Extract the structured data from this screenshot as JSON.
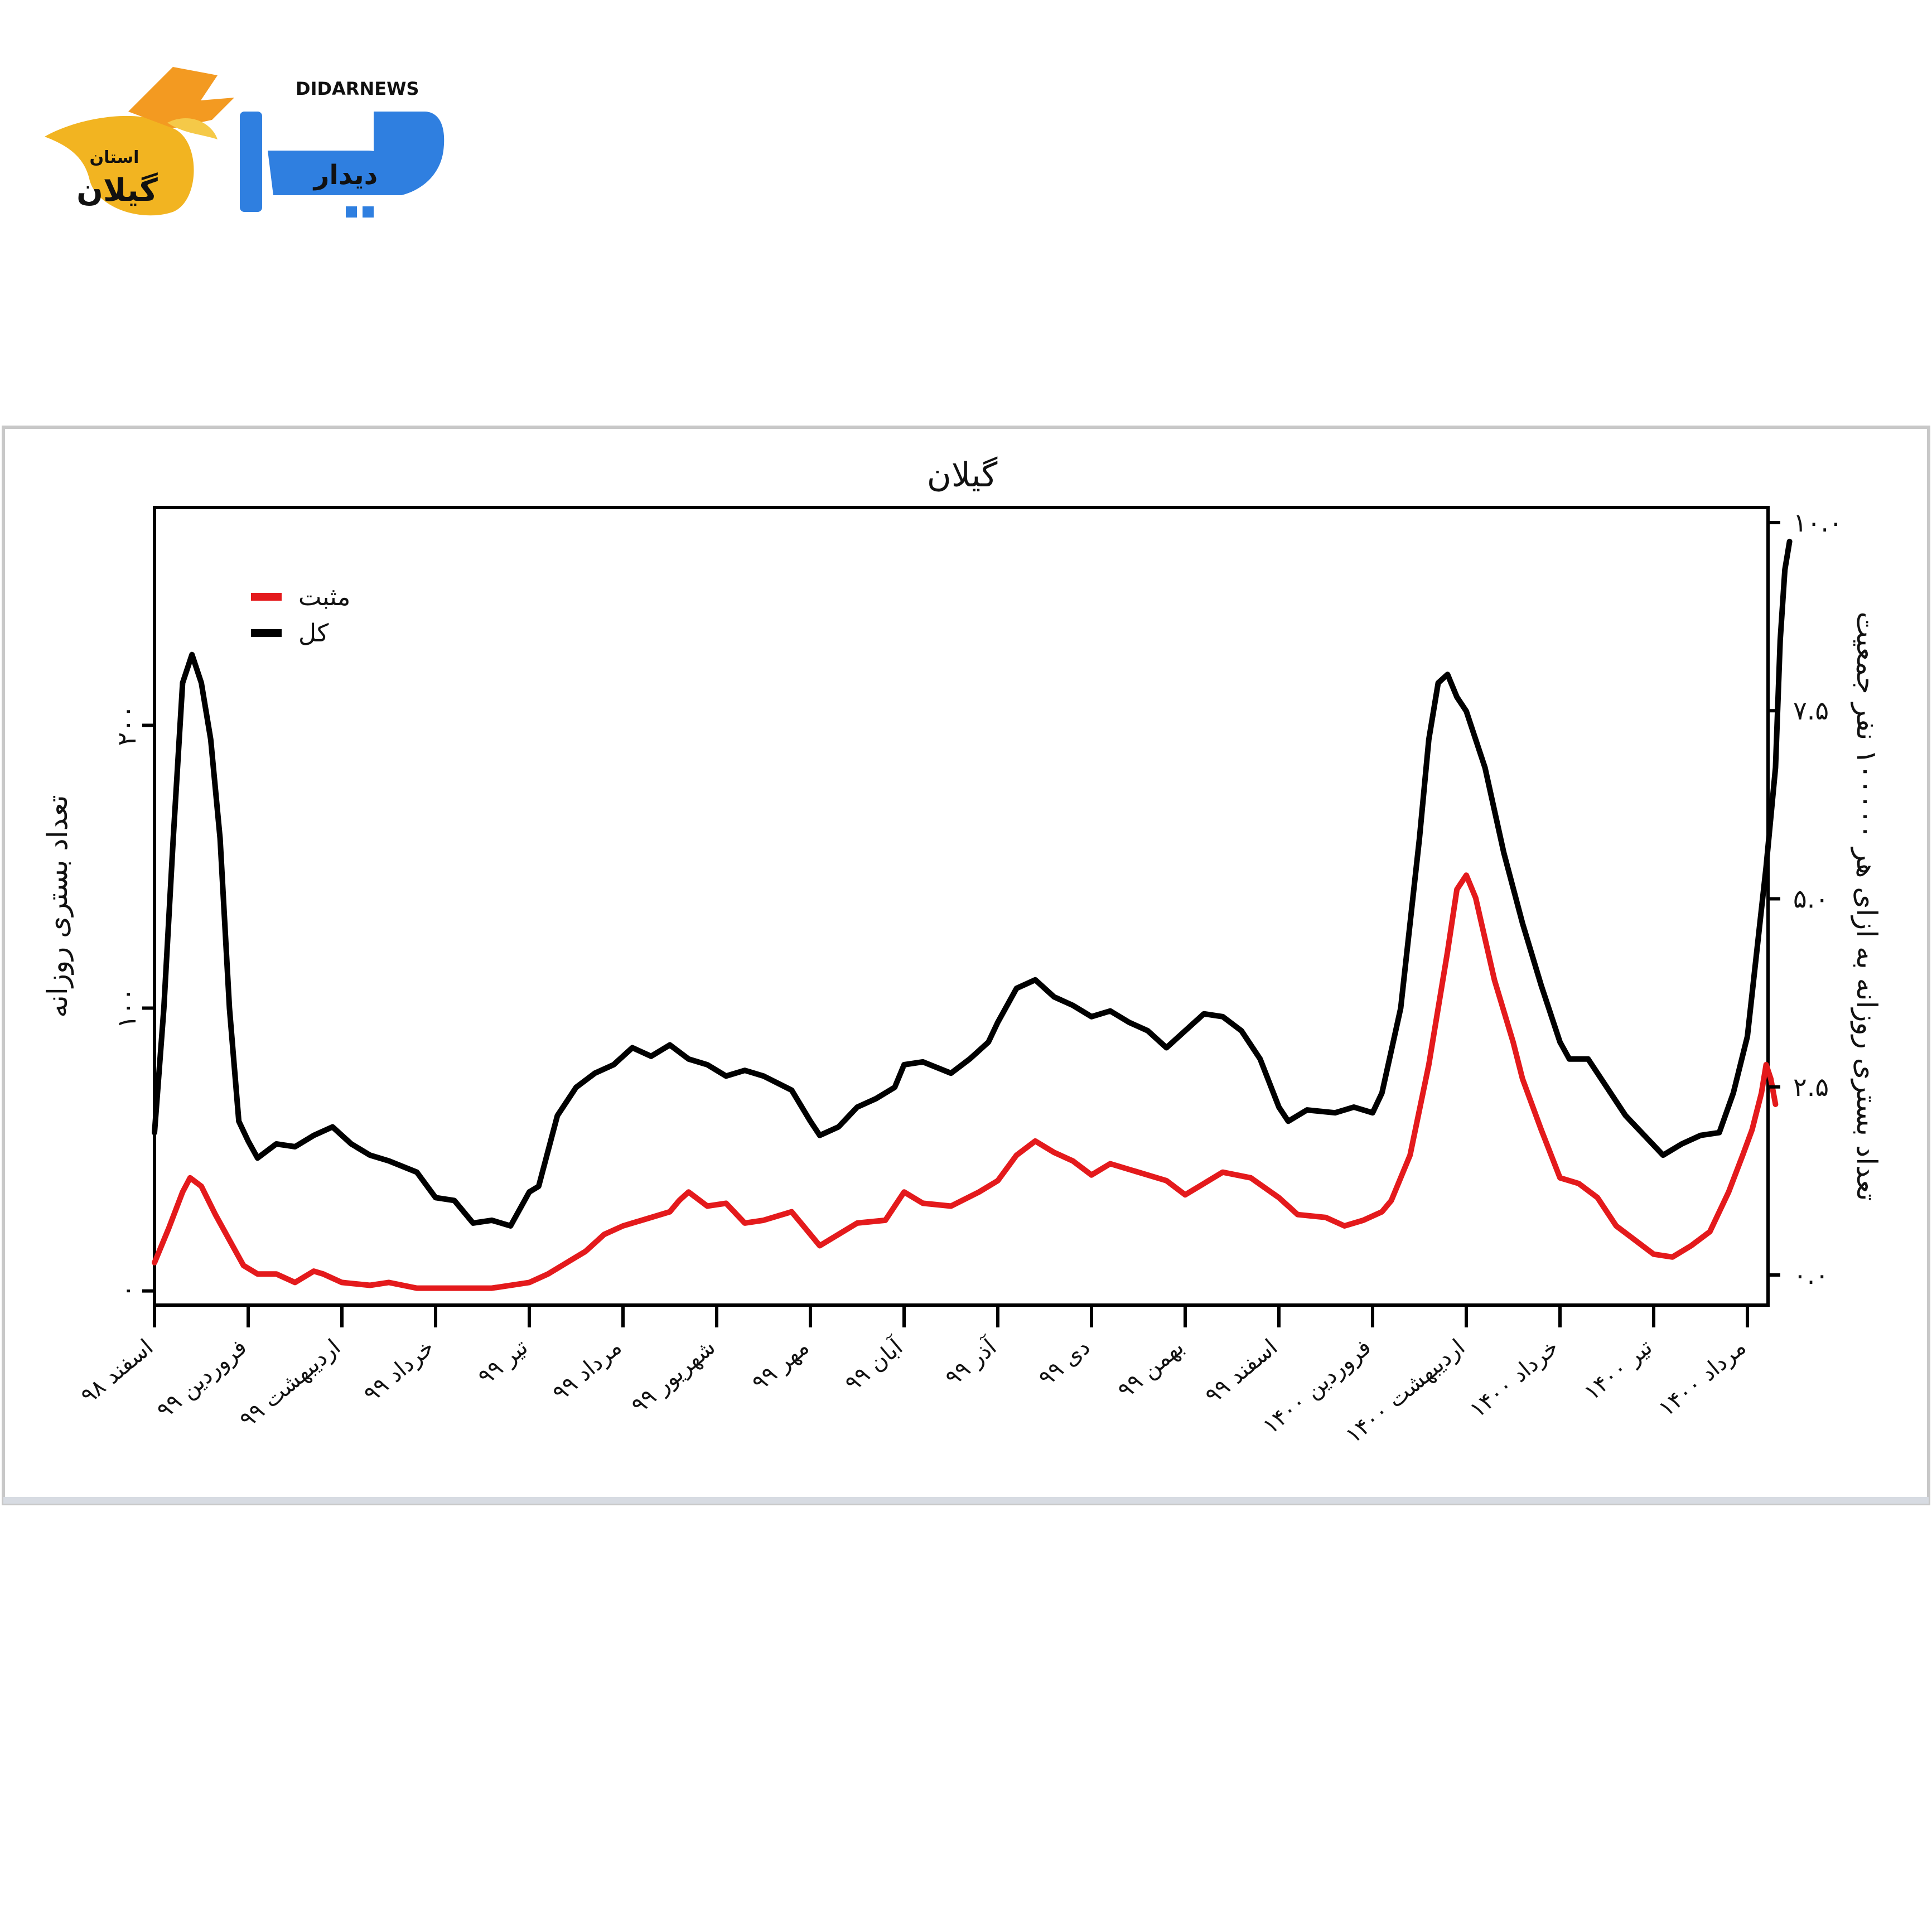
{
  "logo": {
    "brand_latin": "DIDARNEWS",
    "brand_persian": "دیدار",
    "subtitle_top": "استان",
    "subtitle_bottom": "گیلان"
  },
  "chart_data": {
    "type": "line",
    "title": "گیلان",
    "ylabel_left": "تعداد بستری روزانه",
    "ylabel_right": "تعداد بستری روزانه به ازای هر ۱۰۰۰۰۰ نفر جمعیت",
    "ylim_left": [
      -5,
      277
    ],
    "ylim_right": [
      -0.4,
      10.2
    ],
    "yticks_left": [
      {
        "value": 0,
        "label": "۰"
      },
      {
        "value": 100,
        "label": "۱۰۰"
      },
      {
        "value": 200,
        "label": "۲۰۰"
      }
    ],
    "yticks_right": [
      {
        "value": 0,
        "label": "۰.۰"
      },
      {
        "value": 2.5,
        "label": "۲.۵"
      },
      {
        "value": 5.0,
        "label": "۵.۰"
      },
      {
        "value": 7.5,
        "label": "۷.۵"
      },
      {
        "value": 10.0,
        "label": "۱۰.۰"
      }
    ],
    "xlim": [
      0,
      17.15
    ],
    "x_ticks": [
      {
        "x": 0,
        "label": "اسفند ۹۸"
      },
      {
        "x": 1,
        "label": "فروردین ۹۹"
      },
      {
        "x": 2,
        "label": "اردیبهشت ۹۹"
      },
      {
        "x": 3,
        "label": "خرداد ۹۹"
      },
      {
        "x": 4,
        "label": "تیر ۹۹"
      },
      {
        "x": 5,
        "label": "مرداد ۹۹"
      },
      {
        "x": 6,
        "label": "شهریور ۹۹"
      },
      {
        "x": 7,
        "label": "مهر ۹۹"
      },
      {
        "x": 8,
        "label": "آبان ۹۹"
      },
      {
        "x": 9,
        "label": "آذر ۹۹"
      },
      {
        "x": 10,
        "label": "دی ۹۹"
      },
      {
        "x": 11,
        "label": "بهمن ۹۹"
      },
      {
        "x": 12,
        "label": "اسفند ۹۹"
      },
      {
        "x": 13,
        "label": "فروردین ۱۴۰۰"
      },
      {
        "x": 14,
        "label": "اردیبهشت ۱۴۰۰"
      },
      {
        "x": 15,
        "label": "خرداد ۱۴۰۰"
      },
      {
        "x": 16,
        "label": "تیر ۱۴۰۰"
      },
      {
        "x": 17,
        "label": "مرداد ۱۴۰۰"
      }
    ],
    "legend_position": "top-left",
    "grid": false,
    "series": [
      {
        "name": "مثبت",
        "color": "#e41a1c",
        "axis": "left",
        "points": [
          [
            0.0,
            10
          ],
          [
            0.15,
            22
          ],
          [
            0.3,
            35
          ],
          [
            0.38,
            40
          ],
          [
            0.5,
            37
          ],
          [
            0.65,
            27
          ],
          [
            0.8,
            18
          ],
          [
            0.95,
            9
          ],
          [
            1.1,
            6
          ],
          [
            1.3,
            6
          ],
          [
            1.5,
            3
          ],
          [
            1.7,
            7
          ],
          [
            1.8,
            6
          ],
          [
            2.0,
            3
          ],
          [
            2.3,
            2
          ],
          [
            2.5,
            3
          ],
          [
            2.8,
            1
          ],
          [
            3.2,
            1
          ],
          [
            3.6,
            1
          ],
          [
            4.0,
            3
          ],
          [
            4.2,
            6
          ],
          [
            4.4,
            10
          ],
          [
            4.6,
            14
          ],
          [
            4.8,
            20
          ],
          [
            5.0,
            23
          ],
          [
            5.2,
            25
          ],
          [
            5.5,
            28
          ],
          [
            5.6,
            32
          ],
          [
            5.7,
            35
          ],
          [
            5.9,
            30
          ],
          [
            6.1,
            31
          ],
          [
            6.3,
            24
          ],
          [
            6.5,
            25
          ],
          [
            6.8,
            28
          ],
          [
            7.0,
            20
          ],
          [
            7.1,
            16
          ],
          [
            7.3,
            20
          ],
          [
            7.5,
            24
          ],
          [
            7.8,
            25
          ],
          [
            8.0,
            35
          ],
          [
            8.2,
            31
          ],
          [
            8.5,
            30
          ],
          [
            8.8,
            35
          ],
          [
            9.0,
            39
          ],
          [
            9.2,
            48
          ],
          [
            9.4,
            53
          ],
          [
            9.6,
            49
          ],
          [
            9.8,
            46
          ],
          [
            10.0,
            41
          ],
          [
            10.2,
            45
          ],
          [
            10.5,
            42
          ],
          [
            10.8,
            39
          ],
          [
            11.0,
            34
          ],
          [
            11.2,
            38
          ],
          [
            11.4,
            42
          ],
          [
            11.7,
            40
          ],
          [
            12.0,
            33
          ],
          [
            12.2,
            27
          ],
          [
            12.5,
            26
          ],
          [
            12.7,
            23
          ],
          [
            12.9,
            25
          ],
          [
            13.1,
            28
          ],
          [
            13.2,
            32
          ],
          [
            13.4,
            48
          ],
          [
            13.6,
            80
          ],
          [
            13.8,
            120
          ],
          [
            13.9,
            142
          ],
          [
            14.0,
            147
          ],
          [
            14.1,
            139
          ],
          [
            14.3,
            110
          ],
          [
            14.5,
            88
          ],
          [
            14.6,
            75
          ],
          [
            14.8,
            57
          ],
          [
            15.0,
            40
          ],
          [
            15.2,
            38
          ],
          [
            15.4,
            33
          ],
          [
            15.6,
            23
          ],
          [
            15.8,
            18
          ],
          [
            16.0,
            13
          ],
          [
            16.2,
            12
          ],
          [
            16.4,
            16
          ],
          [
            16.6,
            21
          ],
          [
            16.8,
            35
          ],
          [
            16.95,
            48
          ],
          [
            17.05,
            57
          ],
          [
            17.15,
            70
          ],
          [
            17.2,
            80
          ],
          [
            17.25,
            75
          ],
          [
            17.3,
            66
          ]
        ]
      },
      {
        "name": "کل",
        "color": "#000000",
        "axis": "left",
        "points": [
          [
            0.0,
            56
          ],
          [
            0.1,
            100
          ],
          [
            0.2,
            160
          ],
          [
            0.3,
            215
          ],
          [
            0.4,
            225
          ],
          [
            0.5,
            215
          ],
          [
            0.6,
            195
          ],
          [
            0.7,
            160
          ],
          [
            0.8,
            100
          ],
          [
            0.9,
            60
          ],
          [
            1.0,
            53
          ],
          [
            1.1,
            47
          ],
          [
            1.3,
            52
          ],
          [
            1.5,
            51
          ],
          [
            1.7,
            55
          ],
          [
            1.9,
            58
          ],
          [
            2.1,
            52
          ],
          [
            2.3,
            48
          ],
          [
            2.5,
            46
          ],
          [
            2.8,
            42
          ],
          [
            3.0,
            33
          ],
          [
            3.2,
            32
          ],
          [
            3.4,
            24
          ],
          [
            3.6,
            25
          ],
          [
            3.8,
            23
          ],
          [
            4.0,
            35
          ],
          [
            4.1,
            37
          ],
          [
            4.3,
            62
          ],
          [
            4.5,
            72
          ],
          [
            4.7,
            77
          ],
          [
            4.9,
            80
          ],
          [
            5.1,
            86
          ],
          [
            5.3,
            83
          ],
          [
            5.5,
            87
          ],
          [
            5.7,
            82
          ],
          [
            5.9,
            80
          ],
          [
            6.1,
            76
          ],
          [
            6.3,
            78
          ],
          [
            6.5,
            76
          ],
          [
            6.8,
            71
          ],
          [
            7.0,
            60
          ],
          [
            7.1,
            55
          ],
          [
            7.3,
            58
          ],
          [
            7.5,
            65
          ],
          [
            7.7,
            68
          ],
          [
            7.9,
            72
          ],
          [
            8.0,
            80
          ],
          [
            8.2,
            81
          ],
          [
            8.5,
            77
          ],
          [
            8.7,
            82
          ],
          [
            8.9,
            88
          ],
          [
            9.0,
            95
          ],
          [
            9.2,
            107
          ],
          [
            9.4,
            110
          ],
          [
            9.6,
            104
          ],
          [
            9.8,
            101
          ],
          [
            10.0,
            97
          ],
          [
            10.2,
            99
          ],
          [
            10.4,
            95
          ],
          [
            10.6,
            92
          ],
          [
            10.8,
            86
          ],
          [
            11.0,
            92
          ],
          [
            11.2,
            98
          ],
          [
            11.4,
            97
          ],
          [
            11.6,
            92
          ],
          [
            11.8,
            82
          ],
          [
            12.0,
            65
          ],
          [
            12.1,
            60
          ],
          [
            12.3,
            64
          ],
          [
            12.6,
            63
          ],
          [
            12.8,
            65
          ],
          [
            13.0,
            63
          ],
          [
            13.1,
            70
          ],
          [
            13.3,
            100
          ],
          [
            13.5,
            160
          ],
          [
            13.6,
            195
          ],
          [
            13.7,
            215
          ],
          [
            13.8,
            218
          ],
          [
            13.9,
            210
          ],
          [
            14.0,
            205
          ],
          [
            14.2,
            185
          ],
          [
            14.4,
            155
          ],
          [
            14.6,
            130
          ],
          [
            14.8,
            108
          ],
          [
            15.0,
            88
          ],
          [
            15.1,
            82
          ],
          [
            15.3,
            82
          ],
          [
            15.5,
            72
          ],
          [
            15.7,
            62
          ],
          [
            15.9,
            55
          ],
          [
            16.1,
            48
          ],
          [
            16.3,
            52
          ],
          [
            16.5,
            55
          ],
          [
            16.7,
            56
          ],
          [
            16.85,
            70
          ],
          [
            17.0,
            90
          ],
          [
            17.1,
            120
          ],
          [
            17.2,
            150
          ],
          [
            17.3,
            185
          ],
          [
            17.35,
            230
          ],
          [
            17.4,
            255
          ],
          [
            17.45,
            265
          ]
        ]
      }
    ]
  }
}
